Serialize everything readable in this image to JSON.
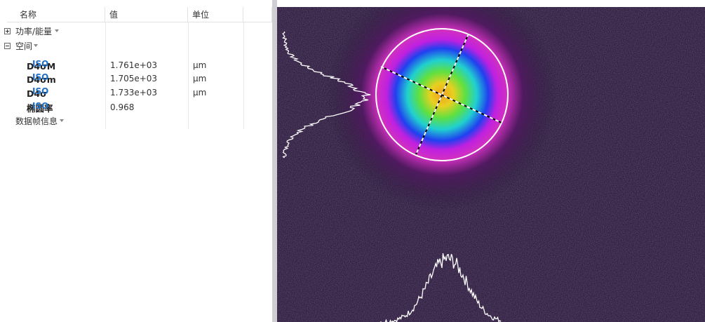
{
  "table": {
    "headers": [
      "名称",
      "值",
      "单位"
    ],
    "groups": [
      {
        "label": "功率/能量"
      },
      {
        "label": "空间",
        "rows": [
          {
            "name": "D4σM",
            "standard": "ISO",
            "value": "1.761e+03",
            "unit": "μm"
          },
          {
            "name": "D4σm",
            "standard": "ISO",
            "value": "1.705e+03",
            "unit": "μm"
          },
          {
            "name": "D4σ",
            "standard": "ISO",
            "value": "1.733e+03",
            "unit": "μm"
          },
          {
            "name": "椭圆率",
            "standard": "ISO",
            "value": "0.968"
          }
        ]
      },
      {
        "label": "数据帧信息"
      }
    ]
  }
}
